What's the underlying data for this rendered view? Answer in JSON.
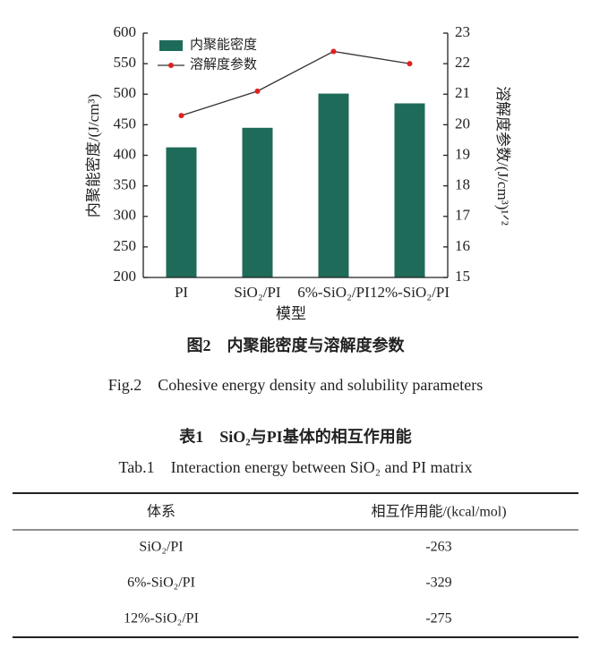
{
  "chart_data": {
    "type": "bar",
    "categories": [
      "PI",
      "SiO₂/PI",
      "6%-SiO₂/PI",
      "12%-SiO₂/PI"
    ],
    "x_label": "模型",
    "y_label": "内聚能密度/(J/cm³)",
    "y2_label": "溶解度参数/(J/cm³)¹ᐟ²",
    "series": [
      {
        "name": "内聚能密度",
        "type": "bar",
        "color": "#1f6b5a",
        "values": [
          413,
          445,
          501,
          485
        ]
      },
      {
        "name": "溶解度参数",
        "type": "line",
        "axis": "y2",
        "color": "#333333",
        "marker_color": "#e02020",
        "values": [
          20.3,
          21.1,
          22.4,
          22.0
        ]
      }
    ],
    "ylim": [
      200,
      600
    ],
    "yticks": [
      200,
      250,
      300,
      350,
      400,
      450,
      500,
      550,
      600
    ],
    "y2lim": [
      15,
      23
    ],
    "y2ticks": [
      15,
      16,
      17,
      18,
      19,
      20,
      21,
      22,
      23
    ],
    "legend": "upper left"
  },
  "figure_caption": {
    "zh": "图2　内聚能密度与溶解度参数",
    "en": "Fig.2　Cohesive energy density and solubility parameters"
  },
  "table": {
    "caption_zh": "表1　SiO₂与PI基体的相互作用能",
    "caption_en": "Tab.1　Interaction energy between SiO₂ and PI matrix",
    "header": [
      "体系",
      "相互作用能/(kcal/mol)"
    ],
    "rows": [
      [
        "SiO₂/PI",
        "-263"
      ],
      [
        "6%-SiO₂/PI",
        "-329"
      ],
      [
        "12%-SiO₂/PI",
        "-275"
      ]
    ]
  }
}
